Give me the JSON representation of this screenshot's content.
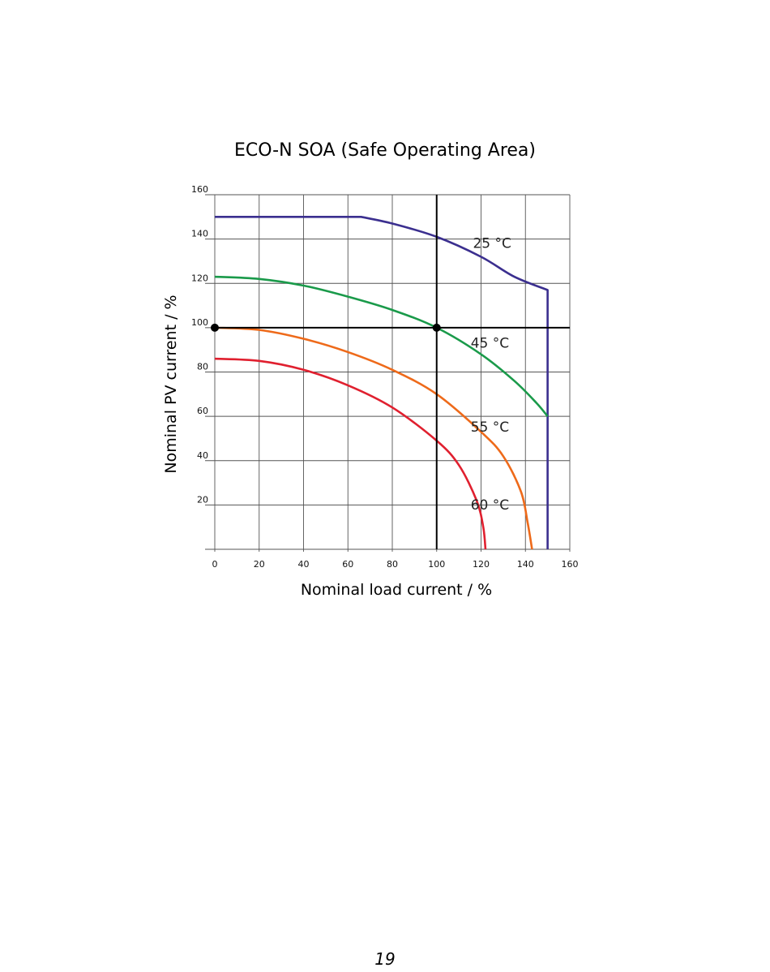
{
  "chart_data": {
    "type": "line",
    "title": "ECO-N SOA (Safe Operating Area)",
    "xlabel": "Nominal load current / %",
    "ylabel": "Nominal PV current / %",
    "xlim": [
      0,
      160
    ],
    "ylim": [
      0,
      160
    ],
    "xticks": [
      "0",
      "20",
      "40",
      "60",
      "80",
      "100",
      "120",
      "140",
      "160"
    ],
    "yticks": [
      "20",
      "40",
      "60",
      "80",
      "100",
      "120",
      "140",
      "160"
    ],
    "grid": true,
    "series": [
      {
        "name": "25 °C",
        "color": "#3b2f8f",
        "points": [
          [
            0,
            150
          ],
          [
            66,
            150
          ],
          [
            80,
            147
          ],
          [
            100,
            141
          ],
          [
            120,
            132
          ],
          [
            135,
            123
          ],
          [
            150,
            117
          ],
          [
            150,
            0
          ]
        ]
      },
      {
        "name": "45 °C",
        "color": "#1a9a4a",
        "points": [
          [
            0,
            123
          ],
          [
            20,
            122
          ],
          [
            40,
            119
          ],
          [
            60,
            114
          ],
          [
            80,
            108
          ],
          [
            100,
            100
          ],
          [
            120,
            88
          ],
          [
            135,
            76
          ],
          [
            145,
            66
          ],
          [
            150,
            60
          ]
        ]
      },
      {
        "name": "55 °C",
        "color": "#ee6a1a",
        "points": [
          [
            0,
            100
          ],
          [
            20,
            99
          ],
          [
            40,
            95
          ],
          [
            60,
            89
          ],
          [
            80,
            81
          ],
          [
            100,
            70
          ],
          [
            120,
            53
          ],
          [
            130,
            42
          ],
          [
            138,
            26
          ],
          [
            141,
            12
          ],
          [
            143,
            0
          ]
        ]
      },
      {
        "name": "60 °C",
        "color": "#e0202f",
        "points": [
          [
            0,
            86
          ],
          [
            20,
            85
          ],
          [
            40,
            81
          ],
          [
            60,
            74
          ],
          [
            80,
            64
          ],
          [
            100,
            49
          ],
          [
            110,
            38
          ],
          [
            118,
            22
          ],
          [
            121,
            10
          ],
          [
            122,
            0
          ]
        ]
      }
    ],
    "reference_lines": [
      {
        "orientation": "horizontal",
        "value": 100
      },
      {
        "orientation": "vertical",
        "value": 100
      }
    ],
    "markers": [
      [
        0,
        100
      ],
      [
        100,
        100
      ]
    ]
  },
  "page": {
    "number": "19"
  }
}
